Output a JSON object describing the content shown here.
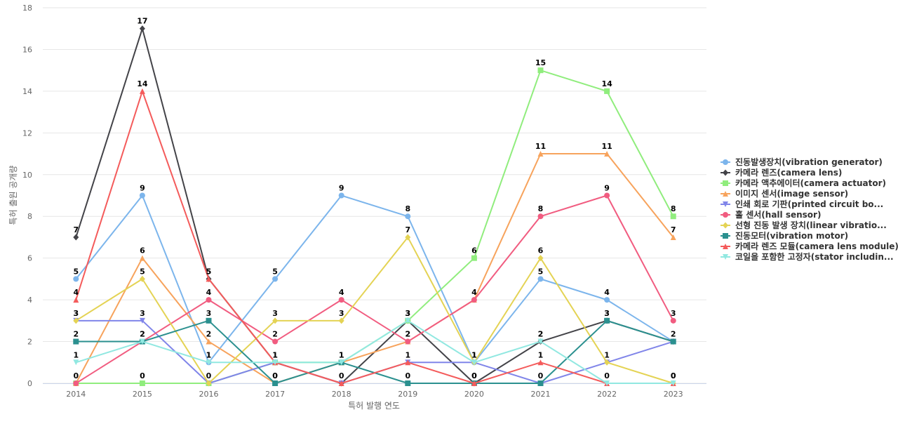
{
  "chart_data": {
    "type": "line",
    "title": "",
    "xlabel": "특허 발행 연도",
    "ylabel": "특허 출원 공개량",
    "x": [
      "2014",
      "2015",
      "2016",
      "2017",
      "2018",
      "2019",
      "2020",
      "2021",
      "2022",
      "2023"
    ],
    "yticks": [
      "0",
      "2",
      "4",
      "6",
      "8",
      "10",
      "12",
      "14",
      "16",
      "18"
    ],
    "ylim": [
      0,
      18
    ],
    "grid": true,
    "legend_position": "right",
    "series": [
      {
        "name": "진동발생장치(vibration generator)",
        "color": "#7cb5ec",
        "marker": "circle",
        "values": [
          5,
          9,
          1,
          5,
          9,
          8,
          1,
          5,
          4,
          2
        ]
      },
      {
        "name": "카메라 렌즈(camera lens)",
        "color": "#434348",
        "marker": "diamond",
        "values": [
          7,
          17,
          5,
          1,
          0,
          3,
          0,
          2,
          3,
          2
        ]
      },
      {
        "name": "카메라 액추에이터(camera actuator)",
        "color": "#90ed7d",
        "marker": "square",
        "values": [
          0,
          0,
          0,
          1,
          1,
          3,
          6,
          15,
          14,
          8
        ]
      },
      {
        "name": "이미지 센서(image sensor)",
        "color": "#f7a35c",
        "marker": "triangle",
        "values": [
          0,
          6,
          2,
          0,
          1,
          2,
          4,
          11,
          11,
          7
        ]
      },
      {
        "name": "인쇄 회로 기판(printed circuit bo...",
        "color": "#8085e9",
        "marker": "triangle-down",
        "values": [
          3,
          3,
          0,
          1,
          0,
          1,
          1,
          0,
          1,
          2
        ]
      },
      {
        "name": "홀 센서(hall sensor)",
        "color": "#f15c80",
        "marker": "circle",
        "values": [
          0,
          2,
          4,
          2,
          4,
          2,
          4,
          8,
          9,
          3
        ]
      },
      {
        "name": "선형 진동 발생 장치(linear vibratio...",
        "color": "#e4d354",
        "marker": "diamond",
        "values": [
          3,
          5,
          0,
          3,
          3,
          7,
          1,
          6,
          1,
          0
        ]
      },
      {
        "name": "진동모터(vibration motor)",
        "color": "#2b908f",
        "marker": "square",
        "values": [
          2,
          2,
          3,
          0,
          1,
          0,
          0,
          0,
          3,
          2
        ]
      },
      {
        "name": "카메라 렌즈 모듈(camera lens module)",
        "color": "#f45b5b",
        "marker": "triangle",
        "values": [
          4,
          14,
          5,
          1,
          0,
          1,
          0,
          1,
          0,
          0
        ]
      },
      {
        "name": "코일을 포함한 고정자(stator includin...",
        "color": "#91e8e1",
        "marker": "triangle-down",
        "values": [
          1,
          2,
          1,
          1,
          1,
          3,
          1,
          2,
          0,
          0
        ]
      }
    ],
    "data_labels": [
      {
        "series": 0,
        "index": 0,
        "text": "5"
      },
      {
        "series": 0,
        "index": 1,
        "text": "9"
      },
      {
        "series": 0,
        "index": 2,
        "text": "1"
      },
      {
        "series": 0,
        "index": 3,
        "text": "5"
      },
      {
        "series": 0,
        "index": 4,
        "text": "9"
      },
      {
        "series": 0,
        "index": 5,
        "text": "8"
      },
      {
        "series": 0,
        "index": 6,
        "text": "1"
      },
      {
        "series": 0,
        "index": 7,
        "text": "5"
      },
      {
        "series": 0,
        "index": 8,
        "text": "4"
      },
      {
        "series": 0,
        "index": 9,
        "text": "2"
      },
      {
        "series": 1,
        "index": 0,
        "text": "7"
      },
      {
        "series": 1,
        "index": 1,
        "text": "17"
      },
      {
        "series": 1,
        "index": 2,
        "text": "5"
      },
      {
        "series": 1,
        "index": 3,
        "text": "1"
      },
      {
        "series": 1,
        "index": 4,
        "text": "0"
      },
      {
        "series": 1,
        "index": 5,
        "text": "3"
      },
      {
        "series": 1,
        "index": 6,
        "text": "0"
      },
      {
        "series": 1,
        "index": 7,
        "text": "2"
      },
      {
        "series": 1,
        "index": 8,
        "text": "3"
      },
      {
        "series": 2,
        "index": 1,
        "text": "0"
      },
      {
        "series": 2,
        "index": 5,
        "text": "3"
      },
      {
        "series": 2,
        "index": 6,
        "text": "6"
      },
      {
        "series": 2,
        "index": 7,
        "text": "15"
      },
      {
        "series": 2,
        "index": 8,
        "text": "14"
      },
      {
        "series": 2,
        "index": 9,
        "text": "8"
      },
      {
        "series": 3,
        "index": 1,
        "text": "6"
      },
      {
        "series": 3,
        "index": 2,
        "text": "2"
      },
      {
        "series": 3,
        "index": 3,
        "text": "0"
      },
      {
        "series": 3,
        "index": 4,
        "text": "1"
      },
      {
        "series": 3,
        "index": 5,
        "text": "2"
      },
      {
        "series": 3,
        "index": 7,
        "text": "11"
      },
      {
        "series": 3,
        "index": 8,
        "text": "11"
      },
      {
        "series": 3,
        "index": 9,
        "text": "7"
      },
      {
        "series": 4,
        "index": 0,
        "text": "3"
      },
      {
        "series": 4,
        "index": 1,
        "text": "3"
      },
      {
        "series": 5,
        "index": 0,
        "text": "0"
      },
      {
        "series": 5,
        "index": 2,
        "text": "4"
      },
      {
        "series": 5,
        "index": 3,
        "text": "2"
      },
      {
        "series": 5,
        "index": 4,
        "text": "4"
      },
      {
        "series": 5,
        "index": 5,
        "text": "2"
      },
      {
        "series": 5,
        "index": 6,
        "text": "4"
      },
      {
        "series": 5,
        "index": 7,
        "text": "8"
      },
      {
        "series": 5,
        "index": 8,
        "text": "9"
      },
      {
        "series": 5,
        "index": 9,
        "text": "3"
      },
      {
        "series": 6,
        "index": 0,
        "text": "3"
      },
      {
        "series": 6,
        "index": 1,
        "text": "5"
      },
      {
        "series": 6,
        "index": 2,
        "text": "0"
      },
      {
        "series": 6,
        "index": 3,
        "text": "3"
      },
      {
        "series": 6,
        "index": 4,
        "text": "3"
      },
      {
        "series": 6,
        "index": 5,
        "text": "7"
      },
      {
        "series": 6,
        "index": 7,
        "text": "6"
      },
      {
        "series": 6,
        "index": 8,
        "text": "1"
      },
      {
        "series": 6,
        "index": 9,
        "text": "0"
      },
      {
        "series": 7,
        "index": 0,
        "text": "2"
      },
      {
        "series": 7,
        "index": 1,
        "text": "2"
      },
      {
        "series": 7,
        "index": 2,
        "text": "3"
      },
      {
        "series": 7,
        "index": 3,
        "text": "0"
      },
      {
        "series": 7,
        "index": 5,
        "text": "0"
      },
      {
        "series": 7,
        "index": 7,
        "text": "0"
      },
      {
        "series": 7,
        "index": 8,
        "text": "3"
      },
      {
        "series": 8,
        "index": 0,
        "text": "4"
      },
      {
        "series": 8,
        "index": 1,
        "text": "14"
      },
      {
        "series": 8,
        "index": 2,
        "text": "5"
      },
      {
        "series": 8,
        "index": 3,
        "text": "1"
      },
      {
        "series": 8,
        "index": 5,
        "text": "1"
      },
      {
        "series": 8,
        "index": 6,
        "text": "0"
      },
      {
        "series": 8,
        "index": 7,
        "text": "1"
      },
      {
        "series": 8,
        "index": 8,
        "text": "0"
      },
      {
        "series": 9,
        "index": 0,
        "text": "1"
      },
      {
        "series": 9,
        "index": 1,
        "text": "2"
      },
      {
        "series": 9,
        "index": 2,
        "text": "1"
      },
      {
        "series": 9,
        "index": 4,
        "text": "1"
      },
      {
        "series": 9,
        "index": 5,
        "text": "3"
      },
      {
        "series": 9,
        "index": 6,
        "text": "1"
      },
      {
        "series": 9,
        "index": 7,
        "text": "2"
      },
      {
        "series": 9,
        "index": 9,
        "text": "0"
      }
    ]
  }
}
